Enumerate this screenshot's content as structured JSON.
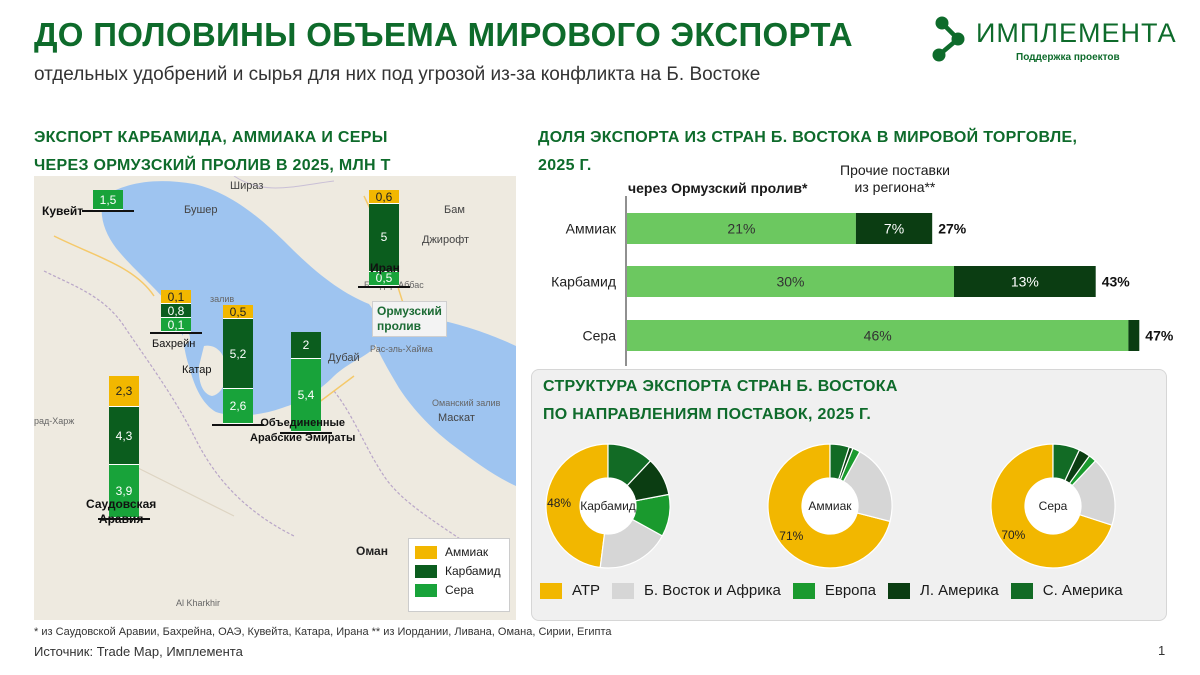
{
  "header": {
    "title": "ДО ПОЛОВИНЫ ОБЪЕМА МИРОВОГО ЭКСПОРТА",
    "subtitle": "отдельных удобрений и сырья для них под угрозой из-за конфликта на Б. Востоке"
  },
  "logo": {
    "name": "ИМПЛЕМЕНТА",
    "tagline": "Поддержка  проектов"
  },
  "map_section": {
    "title_line1": "ЭКСПОРТ КАРБАМИДА, АММИАКА И СЕРЫ",
    "title_line2": "ЧЕРЕЗ ОРМУЗСКИЙ ПРОЛИВ В 2025, МЛН Т",
    "strait_label_line1": "Ормузский",
    "strait_label_line2": "пролив",
    "places": {
      "shiraz": "Шираз",
      "bushehr": "Бушер",
      "bam": "Бам",
      "jiroft": "Джирофт",
      "bandar_abbas": "Бендер-Аббас",
      "ras_al_khaimah": "Рас-эль-Хайма",
      "dubai": "Дубай",
      "muscat": "Маскат",
      "oman": "Оман",
      "al_kharkhir": "Al Kharkhir",
      "haradh": "рад-Харж",
      "bahrain_strait": "залив",
      "oman_gulf": "Оманский залив"
    },
    "countries": [
      {
        "name_line1": "Кувейт",
        "name_line2": ""
      },
      {
        "name_line1": "Иран",
        "name_line2": ""
      },
      {
        "name_line1": "Бахрейн",
        "name_line2": ""
      },
      {
        "name_line1": "Катар",
        "name_line2": ""
      },
      {
        "name_line1": "Объединенные",
        "name_line2": "Арабские Эмираты"
      },
      {
        "name_line1": "Саудовская",
        "name_line2": "Аравия"
      }
    ],
    "legend": [
      "Аммиак",
      "Карбамид",
      "Сера"
    ]
  },
  "bar_section": {
    "title_line1": "ДОЛЯ ЭКСПОРТА ИЗ СТРАН Б. ВОСТОКА В МИРОВОЙ ТОРГОВЛЕ,",
    "title_line2": "2025 Г.",
    "col_head_1": "через Ормузский пролив*",
    "col_head_2_line1": "Прочие поставки",
    "col_head_2_line2": "из региона**"
  },
  "donut_section": {
    "title_line1": "СТРУКТУРА ЭКСПОРТА СТРАН Б. ВОСТОКА",
    "title_line2": "ПО НАПРАВЛЕНИЯМ ПОСТАВОК, 2025 Г."
  },
  "footnote": "* из Саудовской Аравии, Бахрейна, ОАЭ, Кувейта, Катара, Ирана ** из Иордании, Ливана, Омана, Сирии, Египта",
  "source": "Источник: Trade Map, Имплемента",
  "page_number": "1",
  "colors": {
    "brand_green": "#0e6b2b",
    "ammonia": "#f2b700",
    "carbamide": "#0b5d1e",
    "sulfur": "#18a33a",
    "bar_light": "#6cc860",
    "bar_dark": "#0b3d12",
    "atp": "#f2b700",
    "me_africa": "#d6d6d6",
    "europe": "#1a9a2e",
    "lat_america": "#0b3d12",
    "n_america": "#126b25",
    "sea": "#9ec4f0"
  },
  "chart_data": [
    {
      "type": "bar",
      "stacked": true,
      "title": "ЭКСПОРТ КАРБАМИДА, АММИАКА И СЕРЫ ЧЕРЕЗ ОРМУЗСКИЙ ПРОЛИВ В 2025, МЛН Т",
      "categories": [
        "Кувейт",
        "Иран",
        "Бахрейн",
        "Катар",
        "Объединенные Арабские Эмираты",
        "Саудовская Аравия"
      ],
      "series": [
        {
          "name": "Аммиак",
          "values": [
            null,
            0.6,
            0.1,
            0.5,
            null,
            2.3
          ]
        },
        {
          "name": "Карбамид",
          "values": [
            null,
            5.0,
            0.8,
            5.2,
            2.0,
            4.3
          ]
        },
        {
          "name": "Сера",
          "values": [
            1.5,
            0.5,
            0.1,
            2.6,
            5.4,
            3.9
          ]
        }
      ]
    },
    {
      "type": "bar",
      "orientation": "horizontal",
      "stacked": true,
      "title": "ДОЛЯ ЭКСПОРТА ИЗ СТРАН Б. ВОСТОКА В МИРОВОЙ ТОРГОВЛЕ, 2025 Г.",
      "categories": [
        "Аммиак",
        "Карбамид",
        "Сера"
      ],
      "series": [
        {
          "name": "через Ормузский пролив*",
          "values": [
            21,
            30,
            46
          ],
          "labels": [
            "21%",
            "30%",
            "46%"
          ]
        },
        {
          "name": "Прочие поставки из региона**",
          "values": [
            7,
            13,
            1
          ],
          "labels": [
            "7%",
            "13%",
            ""
          ]
        }
      ],
      "totals": [
        "27%",
        "43%",
        "47%"
      ],
      "unit": "%",
      "xlim": [
        0,
        100
      ]
    },
    {
      "type": "pie",
      "donut": true,
      "title": "СТРУКТУРА ЭКСПОРТА СТРАН Б. ВОСТОКА ПО НАПРАВЛЕНИЯМ ПОСТАВОК, 2025 Г.",
      "legend": [
        "АТР",
        "Б. Восток и Африка",
        "Европа",
        "Л. Америка",
        "С. Америка"
      ],
      "charts": [
        {
          "name": "Карбамид",
          "values": [
            48,
            19,
            11,
            10,
            12
          ],
          "labels": [
            "48%",
            "",
            "",
            "",
            ""
          ]
        },
        {
          "name": "Аммиак",
          "values": [
            71,
            21,
            2,
            1,
            5
          ],
          "labels": [
            "71%",
            "",
            "",
            "",
            ""
          ]
        },
        {
          "name": "Сера",
          "values": [
            70,
            18,
            2,
            3,
            7
          ],
          "labels": [
            "70%",
            "",
            "",
            "",
            ""
          ]
        }
      ]
    }
  ]
}
